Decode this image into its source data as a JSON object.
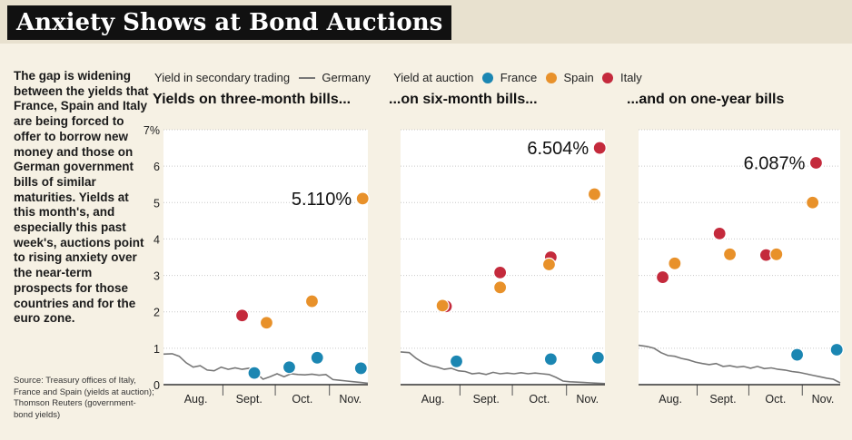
{
  "title": "Anxiety Shows at Bond Auctions",
  "intro": "The gap is widening between the yields that France, Spain and Italy are being forced to offer to borrow new money and those on German government bills of similar maturities. Yields at this month's, and especially this past week's, auctions point to rising anxiety over the near-term prospects for those countries and for the euro zone.",
  "source": "Source: Treasury offices of Italy, France and Spain (yields at auction); Thomson Reuters (government-bond yields)",
  "legend": {
    "secondary_label": "Yield in secondary trading",
    "germany_label": "Germany",
    "auction_label": "Yield at auction",
    "france_label": "France",
    "spain_label": "Spain",
    "italy_label": "Italy"
  },
  "colors": {
    "germany": "#777777",
    "france": "#1b86b2",
    "spain": "#e8912a",
    "italy": "#c42a3c",
    "panel_bg": "#ffffff",
    "page_bg": "#f6f1e4"
  },
  "chart_data": {
    "type": "scatter",
    "y_unit": "%",
    "ylim": [
      0,
      7
    ],
    "yticks": [
      0,
      1,
      2,
      3,
      4,
      5,
      6,
      7
    ],
    "ytick_labels": [
      "0",
      "1",
      "2",
      "3",
      "4",
      "5",
      "6",
      "7%"
    ],
    "months": [
      "Aug.",
      "Sept.",
      "Oct.",
      "Nov."
    ],
    "x_unit": "days since Aug. 1",
    "xlim": [
      -3,
      114
    ],
    "panels": [
      {
        "title": "Yields on three-month bills...",
        "callout": "5.110%",
        "callout_value": 5.11,
        "callout_country": "spain",
        "germany": {
          "x": [
            -3,
            2,
            6,
            10,
            14,
            18,
            22,
            26,
            30,
            34,
            38,
            42,
            46,
            50,
            54,
            58,
            62,
            66,
            70,
            74,
            78,
            82,
            86,
            90,
            94,
            98,
            102,
            106,
            110,
            114
          ],
          "y": [
            0.84,
            0.85,
            0.78,
            0.6,
            0.48,
            0.52,
            0.4,
            0.38,
            0.48,
            0.42,
            0.46,
            0.42,
            0.45,
            0.32,
            0.15,
            0.22,
            0.3,
            0.22,
            0.3,
            0.28,
            0.27,
            0.29,
            0.26,
            0.28,
            0.14,
            0.12,
            0.1,
            0.08,
            0.06,
            0.04
          ]
        },
        "france": {
          "x": [
            49,
            69,
            85,
            110
          ],
          "y": [
            0.32,
            0.48,
            0.74,
            0.45
          ]
        },
        "spain": {
          "x": [
            56,
            82,
            111
          ],
          "y": [
            1.7,
            2.29,
            5.11
          ]
        },
        "italy": {
          "x": [
            42
          ],
          "y": [
            1.9
          ]
        }
      },
      {
        "title": "...on six-month bills...",
        "callout": "6.504%",
        "callout_value": 6.504,
        "callout_country": "italy",
        "germany": {
          "x": [
            -3,
            2,
            6,
            10,
            14,
            18,
            22,
            26,
            30,
            34,
            38,
            42,
            46,
            50,
            54,
            58,
            62,
            66,
            70,
            74,
            78,
            82,
            86,
            90,
            94,
            98,
            102,
            106,
            110,
            114
          ],
          "y": [
            0.9,
            0.88,
            0.72,
            0.6,
            0.52,
            0.48,
            0.42,
            0.45,
            0.38,
            0.36,
            0.3,
            0.32,
            0.28,
            0.34,
            0.3,
            0.32,
            0.3,
            0.33,
            0.3,
            0.32,
            0.3,
            0.28,
            0.2,
            0.1,
            0.08,
            0.07,
            0.06,
            0.05,
            0.04,
            0.03
          ]
        },
        "france": {
          "x": [
            29,
            83,
            110
          ],
          "y": [
            0.64,
            0.7,
            0.74
          ]
        },
        "spain": {
          "x": [
            21,
            54,
            82,
            108
          ],
          "y": [
            2.17,
            2.67,
            3.3,
            5.23
          ]
        },
        "italy": {
          "x": [
            23,
            54,
            83,
            111
          ],
          "y": [
            2.15,
            3.08,
            3.5,
            6.5
          ]
        }
      },
      {
        "title": "...and on one-year bills",
        "callout": "6.087%",
        "callout_value": 6.087,
        "callout_country": "italy",
        "germany": {
          "x": [
            -3,
            2,
            6,
            10,
            14,
            18,
            22,
            26,
            30,
            34,
            38,
            42,
            46,
            50,
            54,
            58,
            62,
            66,
            70,
            74,
            78,
            82,
            86,
            90,
            94,
            98,
            102,
            106,
            110,
            114
          ],
          "y": [
            1.08,
            1.05,
            1.0,
            0.88,
            0.8,
            0.78,
            0.72,
            0.68,
            0.62,
            0.58,
            0.55,
            0.58,
            0.5,
            0.52,
            0.48,
            0.5,
            0.45,
            0.5,
            0.44,
            0.46,
            0.42,
            0.4,
            0.36,
            0.34,
            0.3,
            0.26,
            0.22,
            0.18,
            0.15,
            0.05
          ]
        },
        "france": {
          "x": [
            89,
            112
          ],
          "y": [
            0.82,
            0.96
          ]
        },
        "spain": {
          "x": [
            18,
            50,
            77,
            98
          ],
          "y": [
            3.33,
            3.58,
            3.58,
            5.0
          ]
        },
        "italy": {
          "x": [
            11,
            44,
            71,
            100
          ],
          "y": [
            2.95,
            4.15,
            3.56,
            6.09
          ]
        }
      }
    ]
  }
}
